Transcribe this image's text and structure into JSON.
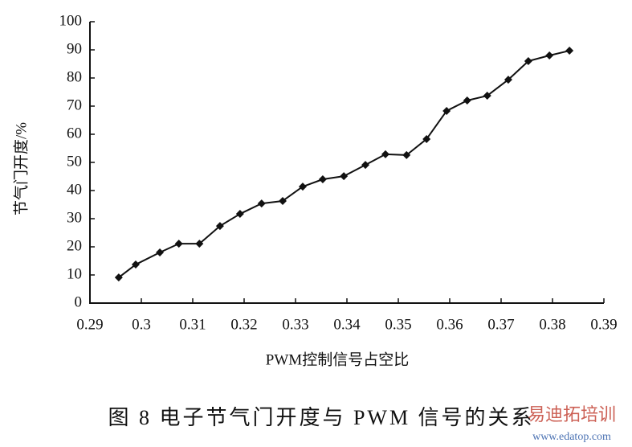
{
  "chart_data": {
    "type": "line",
    "caption": "图 8   电子节气门开度与 PWM 信号的关系",
    "xlabel": "PWM控制信号占空比",
    "ylabel": "节气门开度/%",
    "watermark": "易迪拓培训",
    "watermark_url": "www.edatop.com",
    "x": [
      0.2956,
      0.2989,
      0.3036,
      0.3073,
      0.3113,
      0.3153,
      0.3192,
      0.3234,
      0.3275,
      0.3314,
      0.3353,
      0.3394,
      0.3436,
      0.3475,
      0.3516,
      0.3555,
      0.3594,
      0.3634,
      0.3673,
      0.3714,
      0.3753,
      0.3794,
      0.3833
    ],
    "series": [
      {
        "color": "#111111",
        "values": [
          9.1,
          13.7,
          18.0,
          21.1,
          21.1,
          27.4,
          31.7,
          35.4,
          36.3,
          41.4,
          44.0,
          45.1,
          49.1,
          52.9,
          52.6,
          58.3,
          68.3,
          72.0,
          73.7,
          79.4,
          86.0,
          88.0,
          89.7
        ]
      }
    ],
    "xlim": [
      0.29,
      0.39
    ],
    "xticks": [
      0.29,
      0.3,
      0.31,
      0.32,
      0.33,
      0.34,
      0.35,
      0.36,
      0.37,
      0.38,
      0.39
    ],
    "ylim": [
      0,
      100
    ],
    "yticks": [
      0,
      10,
      20,
      30,
      40,
      50,
      60,
      70,
      80,
      90,
      100
    ],
    "grid": false
  }
}
